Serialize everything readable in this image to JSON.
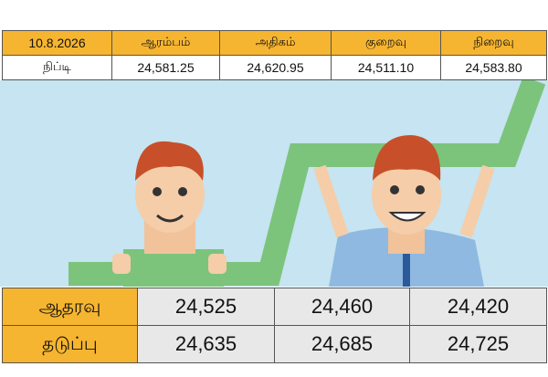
{
  "top_table": {
    "date": "10.8.2026",
    "columns": [
      "ஆரம்பம்",
      "அதிகம்",
      "குறைவு",
      "நிறைவு"
    ],
    "row_label": "நிப்டி",
    "values": [
      "24,581.25",
      "24,620.95",
      "24,511.10",
      "24,583.80"
    ]
  },
  "levels_table": {
    "rows": [
      {
        "label": "ஆதரவு",
        "values": [
          "24,525",
          "24,460",
          "24,420"
        ]
      },
      {
        "label": "தடுப்பு",
        "values": [
          "24,635",
          "24,685",
          "24,725"
        ]
      }
    ]
  }
}
